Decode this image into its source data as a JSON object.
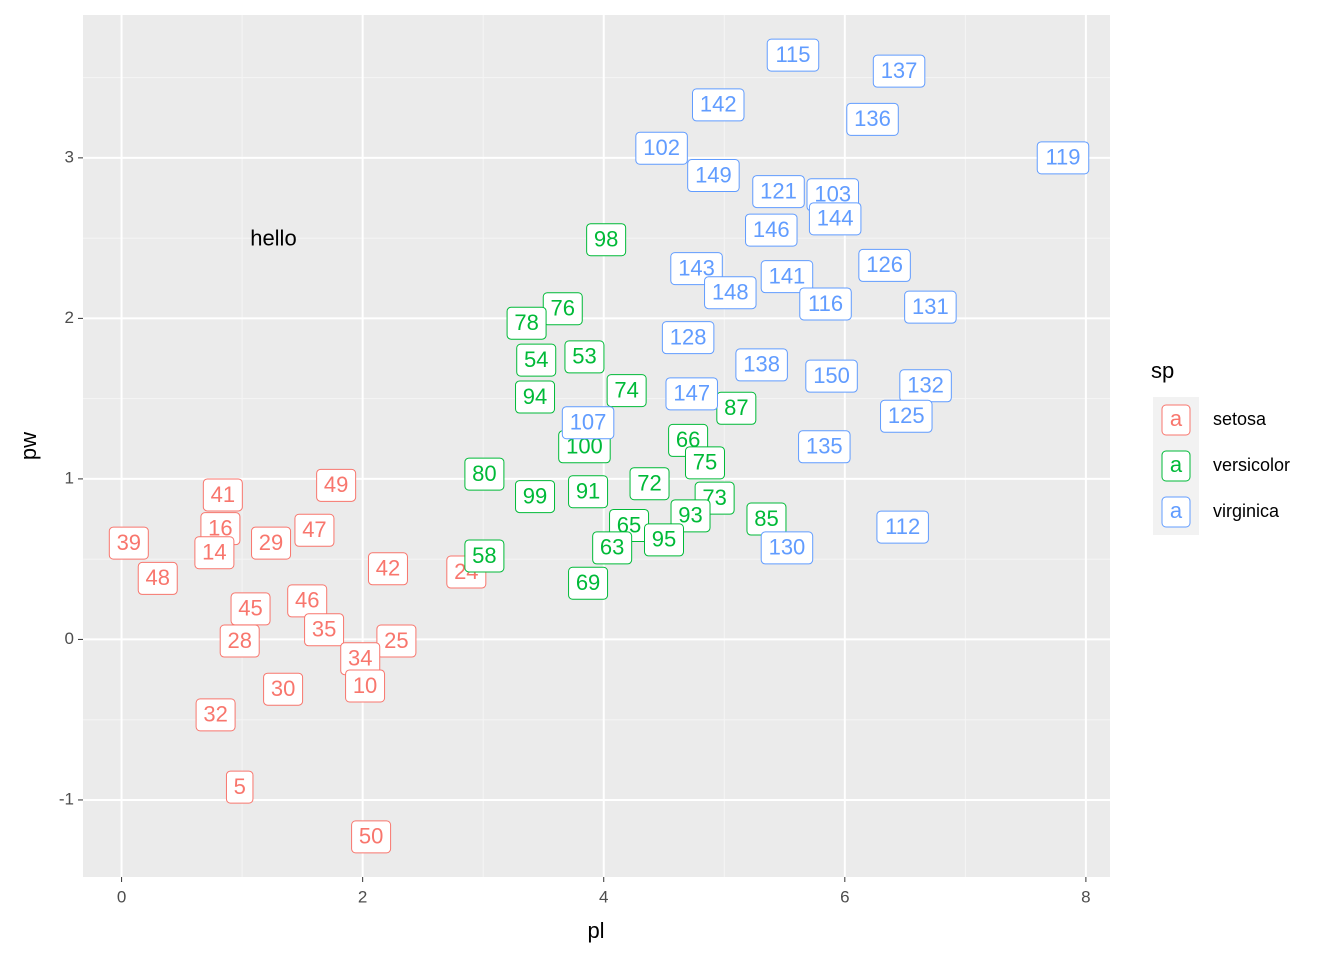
{
  "chart_data": {
    "type": "scatter",
    "x_label": "pl",
    "y_label": "pw",
    "xlim": [
      -0.32,
      8.2
    ],
    "ylim": [
      -1.48,
      3.89
    ],
    "xticks": [
      0,
      2,
      4,
      6,
      8
    ],
    "yticks": [
      -1,
      0,
      1,
      2,
      3
    ],
    "grid": true,
    "legend_title": "sp",
    "legend_key_glyph": "a",
    "legend_position": "right",
    "annotations": [
      {
        "text": "hello",
        "x": 1.26,
        "y": 2.49
      }
    ],
    "series": [
      {
        "name": "setosa",
        "color": "#F8766D",
        "labels": [
          "39",
          "48",
          "41",
          "16",
          "14",
          "29",
          "47",
          "49",
          "42",
          "45",
          "46",
          "28",
          "35",
          "25",
          "34",
          "10",
          "30",
          "32",
          "5",
          "50",
          "24"
        ],
        "x": [
          0.06,
          0.3,
          0.84,
          0.82,
          0.77,
          1.24,
          1.6,
          1.78,
          2.21,
          1.07,
          1.54,
          0.98,
          1.68,
          2.28,
          1.98,
          2.02,
          1.34,
          0.78,
          0.98,
          2.07,
          2.86
        ],
        "y": [
          0.6,
          0.38,
          0.9,
          0.69,
          0.54,
          0.6,
          0.68,
          0.96,
          0.44,
          0.19,
          0.24,
          -0.01,
          0.06,
          -0.01,
          -0.12,
          -0.29,
          -0.31,
          -0.47,
          -0.92,
          -1.23,
          0.42
        ]
      },
      {
        "name": "versicolor",
        "color": "#00BA38",
        "labels": [
          "98",
          "76",
          "78",
          "54",
          "53",
          "94",
          "74",
          "87",
          "66",
          "75",
          "80",
          "99",
          "91",
          "72",
          "73",
          "93",
          "85",
          "65",
          "95",
          "63",
          "58",
          "69",
          "100"
        ],
        "x": [
          4.02,
          3.66,
          3.36,
          3.44,
          3.84,
          3.43,
          4.19,
          5.1,
          4.7,
          4.84,
          3.01,
          3.43,
          3.87,
          4.38,
          4.92,
          4.72,
          5.35,
          4.21,
          4.5,
          4.07,
          3.01,
          3.87,
          3.84
        ],
        "y": [
          2.49,
          2.06,
          1.97,
          1.74,
          1.76,
          1.51,
          1.55,
          1.44,
          1.24,
          1.1,
          1.03,
          0.89,
          0.92,
          0.97,
          0.88,
          0.77,
          0.75,
          0.71,
          0.62,
          0.57,
          0.52,
          0.35,
          1.2
        ]
      },
      {
        "name": "virginica",
        "color": "#619CFF",
        "labels": [
          "115",
          "137",
          "142",
          "136",
          "102",
          "119",
          "149",
          "121",
          "103",
          "144",
          "146",
          "143",
          "126",
          "141",
          "148",
          "116",
          "131",
          "128",
          "138",
          "150",
          "132",
          "125",
          "147",
          "107",
          "135",
          "112",
          "130"
        ],
        "x": [
          5.57,
          6.45,
          4.95,
          6.23,
          4.48,
          7.81,
          4.91,
          5.45,
          5.9,
          5.92,
          5.39,
          4.77,
          6.33,
          5.52,
          5.05,
          5.84,
          6.71,
          4.7,
          5.31,
          5.89,
          6.67,
          6.51,
          4.73,
          3.87,
          5.83,
          6.48,
          5.52
        ],
        "y": [
          3.64,
          3.54,
          3.33,
          3.24,
          3.06,
          3.0,
          2.89,
          2.79,
          2.77,
          2.62,
          2.55,
          2.31,
          2.33,
          2.26,
          2.16,
          2.09,
          2.07,
          1.88,
          1.71,
          1.64,
          1.58,
          1.39,
          1.53,
          1.35,
          1.2,
          0.7,
          0.57
        ]
      }
    ]
  }
}
